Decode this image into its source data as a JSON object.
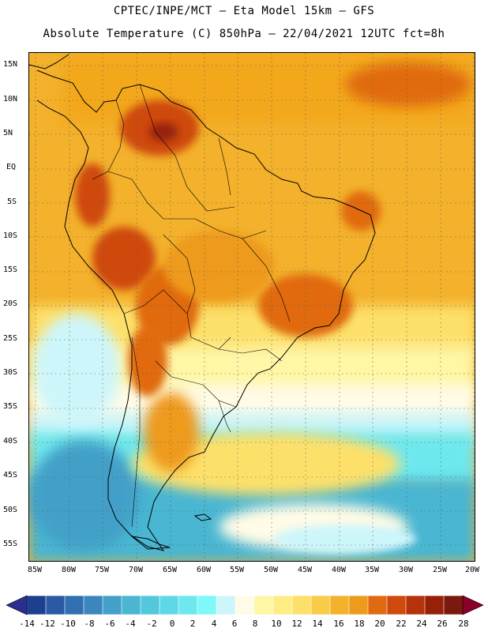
{
  "header": {
    "title_line1": "CPTEC/INPE/MCT –  Eta Model 15km – GFS",
    "title_line2": "Absolute Temperature (C) 850hPa – 22/04/2021 12UTC fct=8h"
  },
  "map": {
    "lat_labels": [
      "15N",
      "10N",
      "5N",
      "EQ",
      "5S",
      "10S",
      "15S",
      "20S",
      "25S",
      "30S",
      "35S",
      "40S",
      "45S",
      "50S",
      "55S"
    ],
    "lon_labels": [
      "85W",
      "80W",
      "75W",
      "70W",
      "65W",
      "60W",
      "55W",
      "50W",
      "45W",
      "40W",
      "35W",
      "30W",
      "25W",
      "20W"
    ],
    "grid": "dotted",
    "region": "South America"
  },
  "legend": {
    "labels": [
      "-14",
      "-12",
      "-10",
      "-8",
      "-6",
      "-4",
      "-2",
      "0",
      "2",
      "4",
      "6",
      "8",
      "10",
      "12",
      "14",
      "16",
      "18",
      "20",
      "22",
      "24",
      "26",
      "28"
    ],
    "colors": [
      "#1d3f8f",
      "#2a5aa3",
      "#3170b0",
      "#3b87bd",
      "#43a0c8",
      "#4ab6d2",
      "#53c8dc",
      "#5fd8e6",
      "#6ee8ef",
      "#7ef8f8",
      "#cdf6fb",
      "#fffbe6",
      "#fff6a6",
      "#ffec84",
      "#fde06a",
      "#f8cc48",
      "#f3b12c",
      "#ee9a1c",
      "#e06a10",
      "#cf4a0c",
      "#b5330a",
      "#962008",
      "#7a1a0e"
    ],
    "over_color": "#8a0028",
    "under_color": "#2a2f8f",
    "units": "C"
  }
}
